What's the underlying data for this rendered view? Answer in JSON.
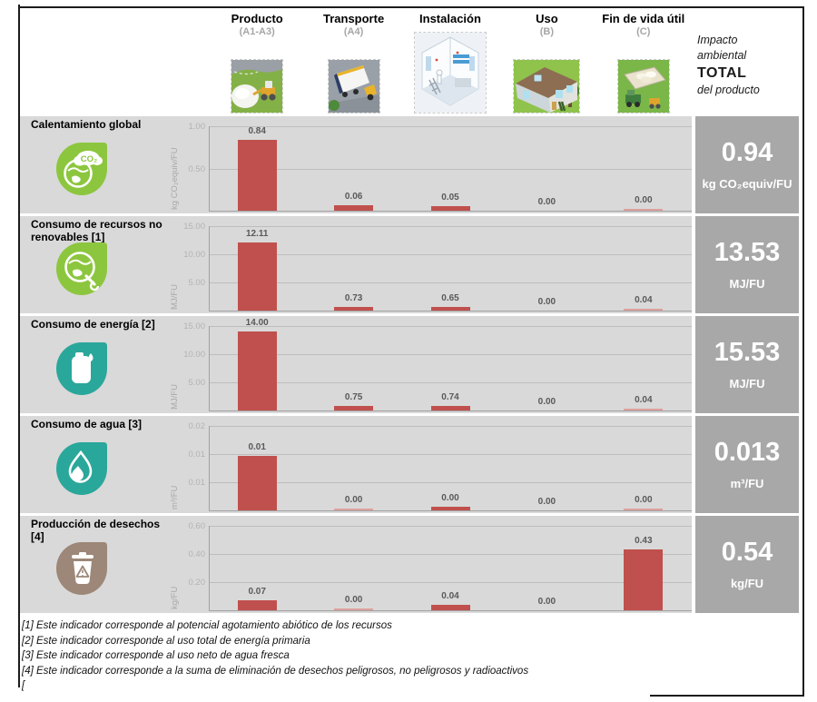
{
  "header": {
    "stages": [
      {
        "label": "Producto",
        "sub": "(A1-A3)",
        "icon": "quarry-illustration"
      },
      {
        "label": "Transporte",
        "sub": "(A4)",
        "icon": "truck-illustration"
      },
      {
        "label": "Instalación",
        "sub": "",
        "icon": "installation-illustration"
      },
      {
        "label": "Uso",
        "sub": "(B)",
        "icon": "house-illustration"
      },
      {
        "label": "Fin de vida útil",
        "sub": "(C)",
        "icon": "landfill-illustration"
      }
    ],
    "total_header": {
      "line1": "Impacto",
      "line2": "ambiental",
      "line3": "TOTAL",
      "line4": "del producto"
    }
  },
  "colors": {
    "row_bg": "#d9d9d9",
    "total_bg": "#a8a8a8",
    "bar": "#c0504d",
    "bar_faint": "#dca09d",
    "green": "#8cc63e",
    "teal": "#2aa79b",
    "brown": "#9c8778",
    "tick_text": "#b3b3b3",
    "value_text": "#595959"
  },
  "chart_data": [
    {
      "type": "bar",
      "title": "Calentamiento global",
      "icon": "globe-co2-icon",
      "icon_color": "#8cc63e",
      "categories": [
        "Producto (A1-A3)",
        "Transporte (A4)",
        "Instalación",
        "Uso (B)",
        "Fin de vida útil (C)"
      ],
      "values": [
        0.84,
        0.06,
        0.05,
        0.0,
        0.0
      ],
      "value_labels": [
        "0.84",
        "0.06",
        "0.05",
        "0.00",
        "0.00"
      ],
      "tiny": [
        "auto",
        "auto",
        "auto",
        "none",
        "sliver"
      ],
      "yticks": [
        "1.00",
        "0.50"
      ],
      "ylim": [
        0,
        1.0
      ],
      "ylabel": "kg CO₂equiv/FU",
      "total": "0.94",
      "total_unit": "kg CO₂equiv/FU"
    },
    {
      "type": "bar",
      "title": "Consumo de recursos no renovables [1]",
      "icon": "globe-resources-icon",
      "icon_color": "#8cc63e",
      "categories": [
        "Producto (A1-A3)",
        "Transporte (A4)",
        "Instalación",
        "Uso (B)",
        "Fin de vida útil (C)"
      ],
      "values": [
        12.11,
        0.73,
        0.65,
        0.0,
        0.04
      ],
      "value_labels": [
        "12.11",
        "0.73",
        "0.65",
        "0.00",
        "0.04"
      ],
      "tiny": [
        "auto",
        "auto",
        "auto",
        "none",
        "sliver"
      ],
      "yticks": [
        "15.00",
        "10.00",
        "5.00"
      ],
      "ylim": [
        0,
        15.0
      ],
      "ylabel": "MJ/FU",
      "total": "13.53",
      "total_unit": "MJ/FU"
    },
    {
      "type": "bar",
      "title": "Consumo de energía [2]",
      "icon": "oil-drum-icon",
      "icon_color": "#2aa79b",
      "categories": [
        "Producto (A1-A3)",
        "Transporte (A4)",
        "Instalación",
        "Uso (B)",
        "Fin de vida útil (C)"
      ],
      "values": [
        14.0,
        0.75,
        0.74,
        0.0,
        0.04
      ],
      "value_labels": [
        "14.00",
        "0.75",
        "0.74",
        "0.00",
        "0.04"
      ],
      "tiny": [
        "auto",
        "auto",
        "auto",
        "none",
        "sliver"
      ],
      "yticks": [
        "15.00",
        "10.00",
        "5.00"
      ],
      "ylim": [
        0,
        15.0
      ],
      "ylabel": "MJ/FU",
      "total": "15.53",
      "total_unit": "MJ/FU"
    },
    {
      "type": "bar",
      "title": "Consumo de agua [3]",
      "icon": "water-drop-icon",
      "icon_color": "#2aa79b",
      "categories": [
        "Producto (A1-A3)",
        "Transporte (A4)",
        "Instalación",
        "Uso (B)",
        "Fin de vida útil (C)"
      ],
      "values": [
        0.013,
        0.0,
        0.0,
        0.0,
        0.0
      ],
      "value_labels": [
        "0.01",
        "0.00",
        "0.00",
        "0.00",
        "0.00"
      ],
      "tiny": [
        "auto",
        "sliver",
        "small",
        "none",
        "sliver"
      ],
      "yticks": [
        "0.02",
        "0.01",
        "0.01"
      ],
      "ylim": [
        0,
        0.02
      ],
      "ylabel": "m³/FU",
      "total": "0.013",
      "total_unit": "m³/FU"
    },
    {
      "type": "bar",
      "title": "Producción de desechos [4]",
      "icon": "trash-icon",
      "icon_color": "#9c8778",
      "categories": [
        "Producto (A1-A3)",
        "Transporte (A4)",
        "Instalación",
        "Uso (B)",
        "Fin de vida útil (C)"
      ],
      "values": [
        0.07,
        0.0,
        0.04,
        0.0,
        0.43
      ],
      "value_labels": [
        "0.07",
        "0.00",
        "0.04",
        "0.00",
        "0.43"
      ],
      "tiny": [
        "auto",
        "sliver",
        "auto",
        "none",
        "auto"
      ],
      "yticks": [
        "0.60",
        "0.40",
        "0.20"
      ],
      "ylim": [
        0,
        0.6
      ],
      "ylabel": "kg/FU",
      "total": "0.54",
      "total_unit": "kg/FU"
    }
  ],
  "footnotes": [
    "[1] Este indicador corresponde al potencial agotamiento abiótico de los recursos",
    "[2] Este indicador corresponde al uso total de energía primaria",
    "[3] Este indicador corresponde al uso neto de agua fresca",
    "[4] Este indicador corresponde a la suma de eliminación de desechos peligrosos, no peligrosos y radioactivos",
    "["
  ]
}
